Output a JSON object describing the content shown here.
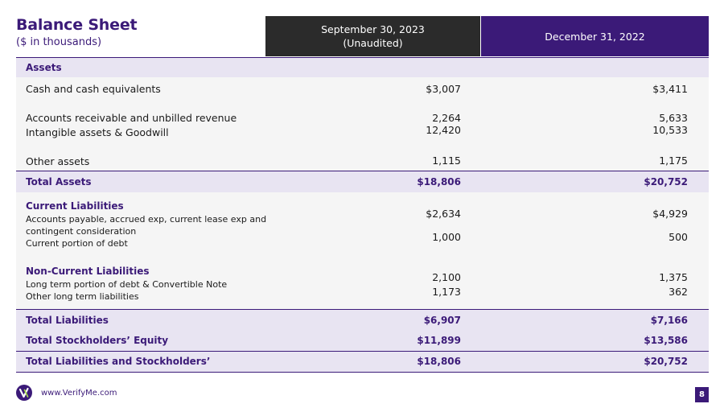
{
  "header": {
    "title": "Balance Sheet",
    "subtitle": "($ in thousands)",
    "col1_line1": "September 30, 2023",
    "col1_line2": "(Unaudited)",
    "col2": "December 31, 2022"
  },
  "assets": {
    "section_label": "Assets",
    "cash": {
      "label": "Cash and cash equivalents",
      "v1": "$3,007",
      "v2": "$3,411"
    },
    "ar": {
      "label": "Accounts receivable and unbilled revenue",
      "v1": "2,264",
      "v2": "5,633"
    },
    "intangibles": {
      "label": "Intangible assets & Goodwill",
      "v1": "12,420",
      "v2": "10,533"
    },
    "other": {
      "label": "Other assets",
      "v1": "1,115",
      "v2": "1,175"
    },
    "total": {
      "label": "Total Assets",
      "v1": "$18,806",
      "v2": "$20,752"
    }
  },
  "liabilities": {
    "current_heading": "Current Liabilities",
    "ap_line1": "Accounts payable, accrued exp, current lease exp and",
    "ap_line2": "contingent consideration",
    "ap_v1": "$2,634",
    "ap_v2": "$4,929",
    "current_debt": {
      "label": "Current portion of debt",
      "v1": "1,000",
      "v2": "500"
    },
    "noncurrent_heading": "Non-Current Liabilities",
    "lt_debt": {
      "label": "Long term portion of debt & Convertible Note",
      "v1": "2,100",
      "v2": "1,375"
    },
    "other_lt": {
      "label": "Other long term liabilities",
      "v1": "1,173",
      "v2": "362"
    }
  },
  "totals": {
    "liabilities": {
      "label": "Total Liabilities",
      "v1": "$6,907",
      "v2": "$7,166"
    },
    "equity": {
      "label": "Total Stockholders’ Equity",
      "v1": "$11,899",
      "v2": "$13,586"
    },
    "liab_equity": {
      "label": "Total Liabilities and Stockholders’",
      "v1": "$18,806",
      "v2": "$20,752"
    }
  },
  "footer": {
    "url": "www.VerifyMe.com",
    "page_number": "8",
    "logo_icon": "verifyme-logo-icon",
    "brand_color": "#3b1a78"
  }
}
